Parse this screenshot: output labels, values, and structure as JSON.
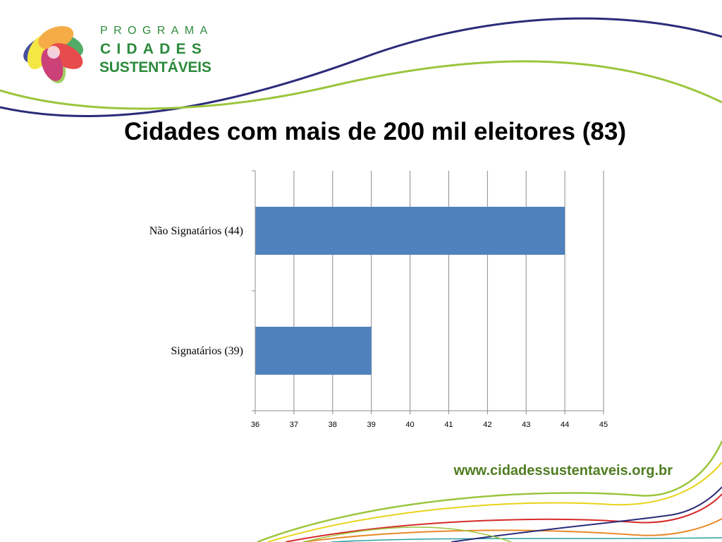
{
  "logo": {
    "line1": "PROGRAMA",
    "line2": "CIDADES",
    "line3": "SUSTENTÁVEIS"
  },
  "title": "Cidades com mais de 200 mil eleitores (83)",
  "footer": {
    "url": "www.cidadessustentaveis.org.br"
  },
  "colors": {
    "bar": "#4f81bd",
    "brand_green": "#2c8a3c",
    "footer_green": "#4f7d21",
    "swoosh_navy": "#2b2b7a",
    "swoosh_lime": "#9bc53d"
  },
  "chart_data": {
    "type": "bar",
    "orientation": "horizontal",
    "categories": [
      "Não Signatários (44)",
      "Signatários (39)"
    ],
    "values": [
      44,
      39
    ],
    "xlim": [
      36,
      45
    ],
    "xticks": [
      "36",
      "37",
      "38",
      "39",
      "40",
      "41",
      "42",
      "43",
      "44",
      "45"
    ],
    "grid": "vertical",
    "legend": "none"
  }
}
